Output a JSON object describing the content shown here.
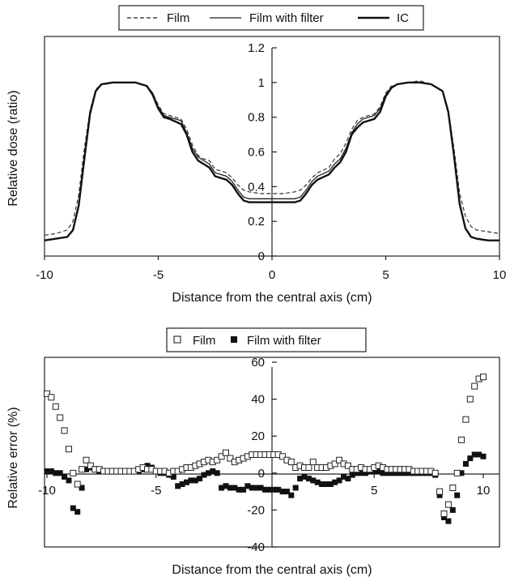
{
  "chart_data": [
    {
      "type": "line",
      "title": "",
      "xlabel": "Distance from the central axis (cm)",
      "ylabel": "Relative dose (ratio)",
      "xlim": [
        -10,
        10
      ],
      "ylim": [
        0,
        1.2
      ],
      "x_ticks": [
        "-10",
        "-5",
        "0",
        "5",
        "10"
      ],
      "y_ticks": [
        "0",
        "0.2",
        "0.4",
        "0.6",
        "0.8",
        "1",
        "1.2"
      ],
      "grid": false,
      "legend_position": "top",
      "series": [
        {
          "name": "Film",
          "x": [
            -10,
            -9.5,
            -9,
            -8.75,
            -8.5,
            -8.25,
            -8,
            -7.75,
            -7.5,
            -7,
            -6.5,
            -6,
            -5.5,
            -5.25,
            -5,
            -4.75,
            -4.5,
            -4,
            -3.75,
            -3.5,
            -3.25,
            -3,
            -2.75,
            -2.5,
            -2,
            -1.75,
            -1.5,
            -1.25,
            -1,
            -0.5,
            0,
            0.5,
            1,
            1.25,
            1.5,
            1.75,
            2,
            2.5,
            2.75,
            3,
            3.25,
            3.5,
            3.75,
            4,
            4.5,
            4.75,
            5,
            5.25,
            5.5,
            6,
            6.5,
            7,
            7.5,
            7.75,
            8,
            8.25,
            8.5,
            8.75,
            9,
            9.5,
            10
          ],
          "y": [
            0.12,
            0.13,
            0.15,
            0.2,
            0.35,
            0.62,
            0.84,
            0.96,
            0.99,
            1.0,
            1.0,
            1.0,
            0.98,
            0.94,
            0.87,
            0.82,
            0.81,
            0.79,
            0.73,
            0.64,
            0.58,
            0.56,
            0.55,
            0.5,
            0.48,
            0.45,
            0.41,
            0.38,
            0.37,
            0.36,
            0.36,
            0.36,
            0.37,
            0.38,
            0.41,
            0.45,
            0.48,
            0.51,
            0.56,
            0.59,
            0.65,
            0.73,
            0.78,
            0.8,
            0.82,
            0.86,
            0.94,
            0.98,
            0.99,
            1.0,
            1.01,
            0.99,
            0.95,
            0.84,
            0.62,
            0.36,
            0.23,
            0.17,
            0.15,
            0.14,
            0.13
          ]
        },
        {
          "name": "Film with filter",
          "x": [
            -10,
            -9.5,
            -9,
            -8.75,
            -8.5,
            -8.25,
            -8,
            -7.75,
            -7.5,
            -7,
            -6.5,
            -6,
            -5.5,
            -5.25,
            -5,
            -4.75,
            -4.5,
            -4,
            -3.75,
            -3.5,
            -3.25,
            -3,
            -2.75,
            -2.5,
            -2,
            -1.75,
            -1.5,
            -1.25,
            -1,
            -0.5,
            0,
            0.5,
            1,
            1.25,
            1.5,
            1.75,
            2,
            2.5,
            2.75,
            3,
            3.25,
            3.5,
            3.75,
            4,
            4.5,
            4.75,
            5,
            5.25,
            5.5,
            6,
            6.5,
            7,
            7.5,
            7.75,
            8,
            8.25,
            8.5,
            8.75,
            9,
            9.5,
            10
          ],
          "y": [
            0.09,
            0.1,
            0.11,
            0.15,
            0.29,
            0.56,
            0.82,
            0.95,
            0.99,
            1.0,
            1.0,
            1.0,
            0.98,
            0.94,
            0.86,
            0.81,
            0.8,
            0.78,
            0.71,
            0.62,
            0.57,
            0.55,
            0.53,
            0.48,
            0.46,
            0.43,
            0.38,
            0.34,
            0.33,
            0.33,
            0.33,
            0.33,
            0.33,
            0.34,
            0.38,
            0.43,
            0.46,
            0.49,
            0.53,
            0.56,
            0.62,
            0.71,
            0.76,
            0.79,
            0.81,
            0.85,
            0.93,
            0.97,
            0.99,
            1.0,
            1.0,
            0.99,
            0.95,
            0.83,
            0.58,
            0.3,
            0.16,
            0.11,
            0.1,
            0.09,
            0.09
          ]
        },
        {
          "name": "IC",
          "x": [
            -10,
            -9.5,
            -9,
            -8.75,
            -8.5,
            -8.25,
            -8,
            -7.75,
            -7.5,
            -7,
            -6.5,
            -6,
            -5.5,
            -5.25,
            -5,
            -4.75,
            -4.5,
            -4,
            -3.75,
            -3.5,
            -3.25,
            -3,
            -2.75,
            -2.5,
            -2,
            -1.75,
            -1.5,
            -1.25,
            -1,
            -0.5,
            0,
            0.5,
            1,
            1.25,
            1.5,
            1.75,
            2,
            2.5,
            2.75,
            3,
            3.25,
            3.5,
            3.75,
            4,
            4.5,
            4.75,
            5,
            5.25,
            5.5,
            6,
            6.5,
            7,
            7.5,
            7.75,
            8,
            8.25,
            8.5,
            8.75,
            9,
            9.5,
            10
          ],
          "y": [
            0.09,
            0.1,
            0.11,
            0.15,
            0.29,
            0.56,
            0.82,
            0.95,
            0.99,
            1.0,
            1.0,
            1.0,
            0.98,
            0.93,
            0.85,
            0.8,
            0.79,
            0.76,
            0.7,
            0.6,
            0.55,
            0.53,
            0.51,
            0.46,
            0.44,
            0.41,
            0.36,
            0.32,
            0.31,
            0.31,
            0.31,
            0.31,
            0.31,
            0.32,
            0.36,
            0.41,
            0.44,
            0.47,
            0.51,
            0.54,
            0.6,
            0.7,
            0.74,
            0.77,
            0.79,
            0.83,
            0.92,
            0.97,
            0.99,
            1.0,
            1.0,
            0.99,
            0.95,
            0.83,
            0.58,
            0.3,
            0.16,
            0.11,
            0.1,
            0.09,
            0.09
          ]
        }
      ]
    },
    {
      "type": "scatter",
      "title": "",
      "xlabel": "Distance from the central axis (cm)",
      "ylabel": "Relative error (%)",
      "xlim": [
        -10,
        10
      ],
      "ylim": [
        -40,
        60
      ],
      "x_ticks": [
        "-10",
        "-5",
        "5",
        "10"
      ],
      "y_ticks": [
        "-40",
        "-20",
        "0",
        "20",
        "40",
        "60"
      ],
      "grid": false,
      "legend_position": "top",
      "series": [
        {
          "name": "Film",
          "marker": "open-square",
          "x": [
            -10,
            -9.8,
            -9.6,
            -9.4,
            -9.2,
            -9.0,
            -8.8,
            -8.6,
            -8.4,
            -8.2,
            -8.0,
            -7.8,
            -7.6,
            -7.4,
            -7.2,
            -7.0,
            -6.8,
            -6.6,
            -6.4,
            -6.2,
            -6.0,
            -5.8,
            -5.6,
            -5.4,
            -5.2,
            -5.0,
            -4.8,
            -4.6,
            -4.4,
            -4.2,
            -4.0,
            -3.8,
            -3.6,
            -3.4,
            -3.2,
            -3.0,
            -2.8,
            -2.6,
            -2.4,
            -2.2,
            -2.0,
            -1.8,
            -1.6,
            -1.4,
            -1.2,
            -1.0,
            -0.8,
            -0.6,
            -0.4,
            -0.2,
            0.0,
            0.2,
            0.4,
            0.6,
            0.8,
            1.0,
            1.2,
            1.4,
            1.6,
            1.8,
            2.0,
            2.2,
            2.4,
            2.6,
            2.8,
            3.0,
            3.2,
            3.4,
            3.6,
            3.8,
            4.0,
            4.2,
            4.4,
            4.6,
            4.8,
            5.0,
            5.2,
            5.4,
            5.6,
            5.8,
            6.0,
            6.2,
            6.4,
            6.6,
            6.8,
            7.0,
            7.2,
            7.4,
            7.6,
            7.8,
            8.0,
            8.2,
            8.4,
            8.6,
            8.8,
            9.0,
            9.2,
            9.4,
            9.6,
            9.8,
            10.0
          ],
          "y": [
            43,
            41,
            36,
            30,
            23,
            13,
            0,
            -6,
            2,
            7,
            4,
            2,
            2,
            1,
            1,
            1,
            1,
            1,
            1,
            1,
            1,
            2,
            3,
            2,
            2,
            1,
            1,
            1,
            0,
            1,
            1,
            2,
            3,
            3,
            4,
            5,
            6,
            7,
            6,
            7,
            9,
            11,
            8,
            6,
            7,
            8,
            9,
            10,
            10,
            10,
            10,
            10,
            10,
            10,
            9,
            7,
            6,
            3,
            4,
            3,
            3,
            6,
            3,
            3,
            3,
            4,
            5,
            7,
            5,
            4,
            2,
            2,
            3,
            2,
            2,
            3,
            4,
            3,
            2,
            2,
            2,
            2,
            2,
            2,
            1,
            1,
            1,
            1,
            1,
            0,
            -10,
            -22,
            -17,
            -8,
            0,
            18,
            29,
            40,
            47,
            51,
            52
          ]
        },
        {
          "name": "Film with filter",
          "marker": "filled-square",
          "x": [
            -10,
            -9.8,
            -9.6,
            -9.4,
            -9.2,
            -9.0,
            -8.8,
            -8.6,
            -8.4,
            -8.2,
            -8.0,
            -7.8,
            -7.6,
            -7.4,
            -7.2,
            -7.0,
            -6.8,
            -6.6,
            -6.4,
            -6.2,
            -6.0,
            -5.8,
            -5.6,
            -5.4,
            -5.2,
            -5.0,
            -4.8,
            -4.6,
            -4.4,
            -4.2,
            -4.0,
            -3.8,
            -3.6,
            -3.4,
            -3.2,
            -3.0,
            -2.8,
            -2.6,
            -2.4,
            -2.2,
            -2.0,
            -1.8,
            -1.6,
            -1.4,
            -1.2,
            -1.0,
            -0.8,
            -0.6,
            -0.4,
            -0.2,
            0.0,
            0.2,
            0.4,
            0.6,
            0.8,
            1.0,
            1.2,
            1.4,
            1.6,
            1.8,
            2.0,
            2.2,
            2.4,
            2.6,
            2.8,
            3.0,
            3.2,
            3.4,
            3.6,
            3.8,
            4.0,
            4.2,
            4.4,
            4.6,
            4.8,
            5.0,
            5.2,
            5.4,
            5.6,
            5.8,
            6.0,
            6.2,
            6.4,
            6.6,
            6.8,
            7.0,
            7.2,
            7.4,
            7.6,
            7.8,
            8.0,
            8.2,
            8.4,
            8.6,
            8.8,
            9.0,
            9.2,
            9.4,
            9.6,
            9.8,
            10.0
          ],
          "y": [
            1,
            1,
            0,
            0,
            -2,
            -4,
            -19,
            -21,
            -8,
            2,
            3,
            2,
            1,
            1,
            1,
            1,
            1,
            1,
            1,
            1,
            1,
            1,
            2,
            4,
            3,
            1,
            0,
            0,
            -1,
            -2,
            -7,
            -6,
            -5,
            -4,
            -4,
            -3,
            -1,
            0,
            1,
            0,
            -8,
            -7,
            -8,
            -8,
            -9,
            -9,
            -7,
            -8,
            -8,
            -8,
            -9,
            -9,
            -9,
            -9,
            -10,
            -10,
            -12,
            -8,
            -3,
            -2,
            -3,
            -4,
            -5,
            -6,
            -6,
            -6,
            -5,
            -4,
            -2,
            -3,
            -1,
            0,
            0,
            0,
            1,
            1,
            1,
            0,
            0,
            0,
            0,
            0,
            0,
            0,
            0,
            0,
            0,
            0,
            0,
            -1,
            -12,
            -24,
            -26,
            -20,
            -12,
            0,
            5,
            8,
            10,
            10,
            9
          ]
        }
      ]
    }
  ]
}
